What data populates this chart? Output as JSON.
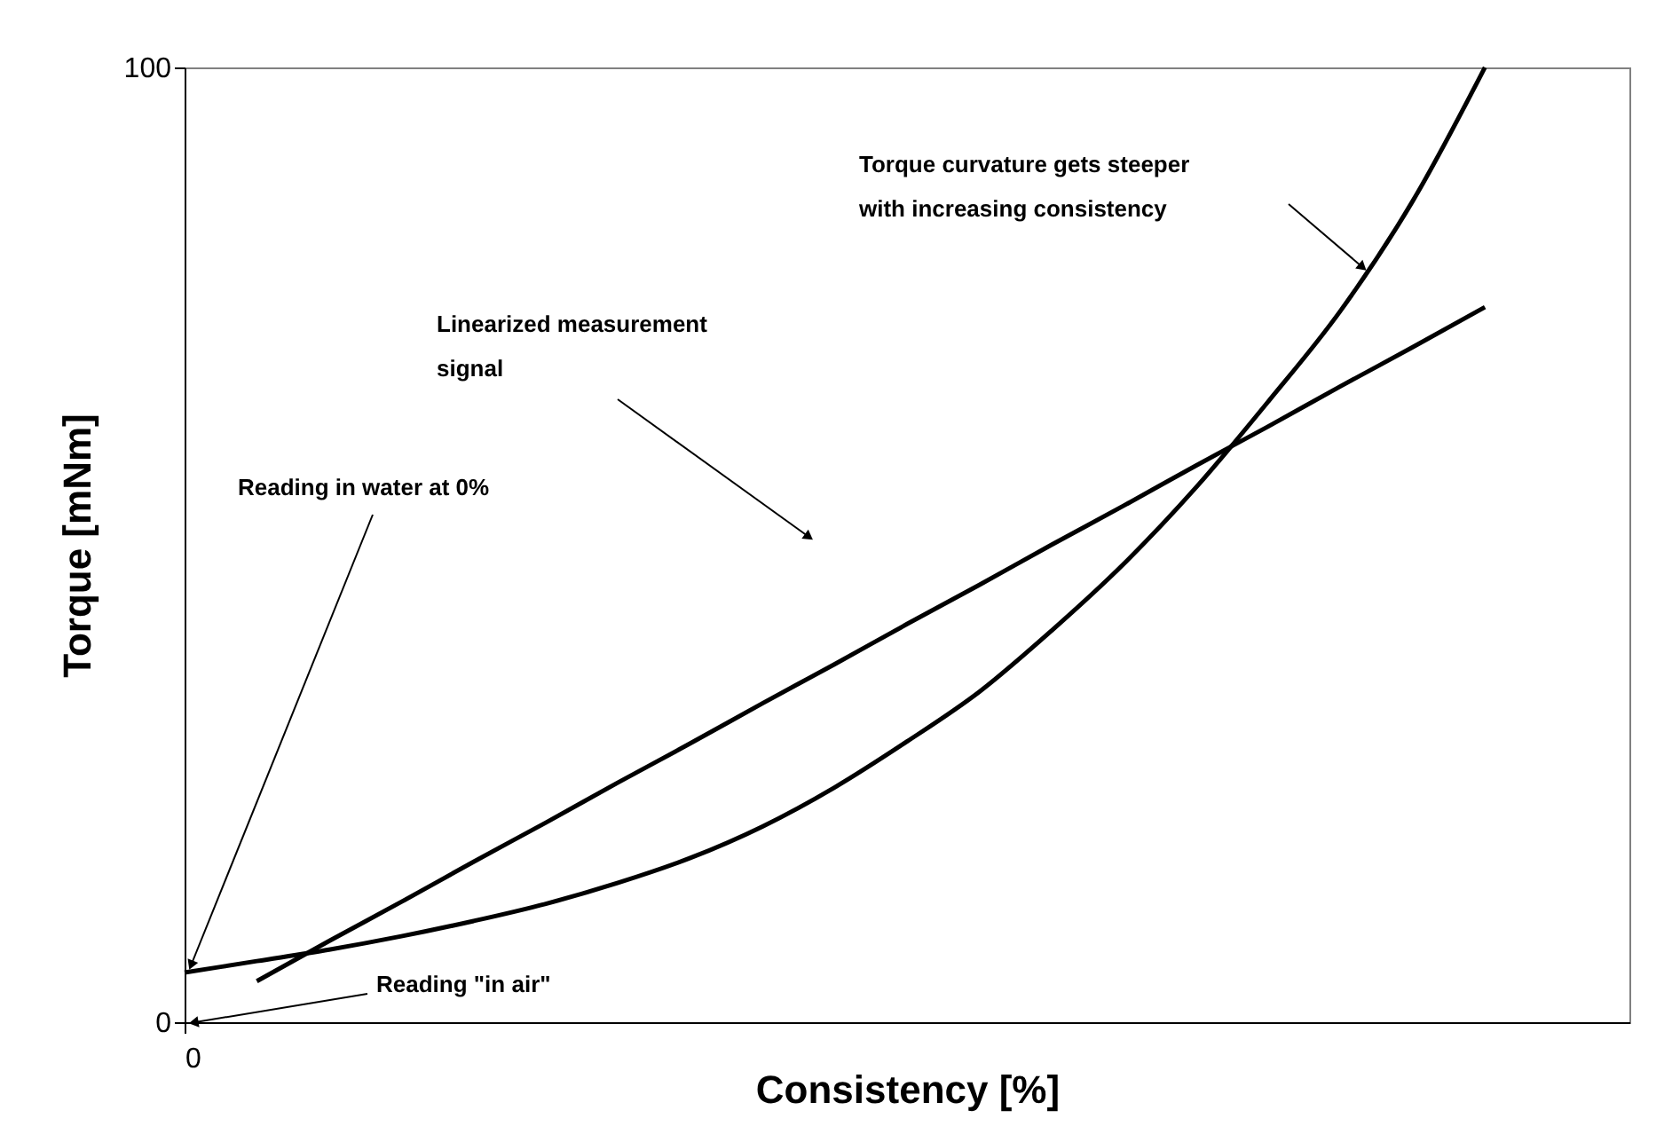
{
  "chart_data": {
    "type": "line",
    "xlabel": "Consistency [%]",
    "ylabel": "Torque [mNm]",
    "categories": [
      "0",
      null,
      null,
      null,
      null,
      null,
      null,
      null,
      null,
      null,
      null,
      null,
      null,
      null,
      null,
      null,
      null,
      null,
      null,
      null,
      null
    ],
    "ylim": [
      0,
      100
    ],
    "yticks": [
      0,
      100
    ],
    "grid": false,
    "marker": "none",
    "line_style": "solid",
    "series": [
      {
        "color": "#000000",
        "values": [
          5.2,
          6.4,
          7.6,
          9.0,
          10.6,
          12.4,
          14.6,
          17.2,
          20.5,
          24.6,
          29.4,
          34.6,
          41.0,
          48.0,
          56.0,
          65.0,
          74.5,
          86.0,
          100.0,
          null,
          null
        ]
      },
      {
        "color": "#000000",
        "values": [
          null,
          4.3,
          8.5,
          12.6,
          16.8,
          20.9,
          25.1,
          29.2,
          33.4,
          37.5,
          41.7,
          45.8,
          50.0,
          54.1,
          58.3,
          62.4,
          66.6,
          70.7,
          74.9,
          null,
          null
        ]
      }
    ],
    "annotations": [
      "Torque curvature gets steeper\nwith increasing consistency",
      "Linearized measurement\nsignal",
      "Reading in water at 0%",
      "Reading \"in air\""
    ]
  }
}
